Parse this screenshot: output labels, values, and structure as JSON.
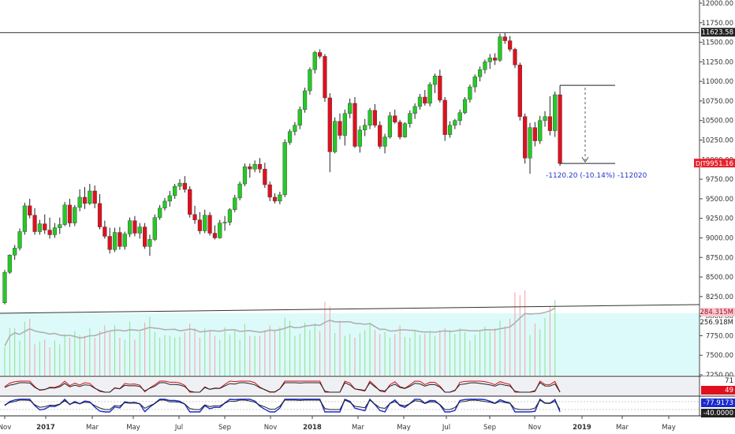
{
  "chart_data": [
    {
      "type": "candlestick",
      "symbol_tag": "DJT",
      "last_value_label": "9951.16",
      "reference_line_label": "11623.58",
      "ylim": [
        7250,
        12000
      ],
      "y_ticks": [
        "12000.00",
        "11750.00",
        "11500.00",
        "11250.00",
        "11000.00",
        "10750.00",
        "10500.00",
        "10250.00",
        "10000.00",
        "9750.00",
        "9500.00",
        "9250.00",
        "9000.00",
        "8750.00",
        "8500.00",
        "8250.00",
        "8000.00",
        "7750.00",
        "7500.00",
        "7250.00"
      ],
      "x_ticks": [
        "Nov",
        "2017",
        "Mar",
        "May",
        "Jul",
        "Sep",
        "Nov",
        "2018",
        "Mar",
        "May",
        "Jul",
        "Sep",
        "Nov",
        "2019",
        "Mar",
        "May"
      ],
      "measure_annotation": "-1120.20 (-10.14%) -112020",
      "colors": {
        "up": "#26c926",
        "down": "#e0101e",
        "reference_line": "#333333",
        "price_tag": "#e8202a",
        "volume_tag": "#f7c7ce",
        "volume_ma": "#b0b0b0",
        "volume_area": "#ddfafa",
        "annotation": "#2633c9"
      },
      "ohlc": [
        [
          8170,
          8590,
          8150,
          8560
        ],
        [
          8560,
          8790,
          8540,
          8780
        ],
        [
          8780,
          8910,
          8720,
          8870
        ],
        [
          8870,
          9120,
          8840,
          9080
        ],
        [
          9080,
          9450,
          9040,
          9410
        ],
        [
          9410,
          9500,
          9250,
          9290
        ],
        [
          9290,
          9380,
          9040,
          9080
        ],
        [
          9080,
          9230,
          9040,
          9180
        ],
        [
          9180,
          9300,
          9050,
          9100
        ],
        [
          9100,
          9260,
          8990,
          9040
        ],
        [
          9040,
          9190,
          9000,
          9130
        ],
        [
          9130,
          9260,
          9050,
          9170
        ],
        [
          9170,
          9460,
          9150,
          9420
        ],
        [
          9420,
          9500,
          9140,
          9190
        ],
        [
          9190,
          9420,
          9150,
          9390
        ],
        [
          9390,
          9620,
          9340,
          9520
        ],
        [
          9520,
          9650,
          9370,
          9440
        ],
        [
          9440,
          9690,
          9420,
          9600
        ],
        [
          9600,
          9670,
          9380,
          9440
        ],
        [
          9440,
          9560,
          9110,
          9140
        ],
        [
          9140,
          9220,
          8990,
          9020
        ],
        [
          9020,
          9130,
          8800,
          8850
        ],
        [
          8850,
          9130,
          8820,
          9070
        ],
        [
          9070,
          9140,
          8850,
          8890
        ],
        [
          8890,
          9080,
          8850,
          9050
        ],
        [
          9050,
          9260,
          9010,
          9220
        ],
        [
          9220,
          9280,
          9020,
          9060
        ],
        [
          9060,
          9190,
          8990,
          9140
        ],
        [
          9140,
          9190,
          8860,
          8890
        ],
        [
          8890,
          9040,
          8770,
          8980
        ],
        [
          8980,
          9300,
          8960,
          9260
        ],
        [
          9260,
          9420,
          9230,
          9380
        ],
        [
          9380,
          9510,
          9350,
          9470
        ],
        [
          9470,
          9600,
          9400,
          9540
        ],
        [
          9540,
          9690,
          9500,
          9660
        ],
        [
          9660,
          9750,
          9610,
          9700
        ],
        [
          9700,
          9790,
          9580,
          9620
        ],
        [
          9620,
          9660,
          9260,
          9300
        ],
        [
          9300,
          9410,
          9180,
          9230
        ],
        [
          9230,
          9330,
          9050,
          9090
        ],
        [
          9090,
          9360,
          9060,
          9290
        ],
        [
          9290,
          9330,
          9030,
          9060
        ],
        [
          9060,
          9160,
          8980,
          9000
        ],
        [
          9000,
          9230,
          8990,
          9190
        ],
        [
          9190,
          9280,
          9090,
          9200
        ],
        [
          9200,
          9380,
          9160,
          9360
        ],
        [
          9360,
          9550,
          9330,
          9510
        ],
        [
          9510,
          9720,
          9480,
          9690
        ],
        [
          9690,
          9950,
          9660,
          9910
        ],
        [
          9910,
          9950,
          9770,
          9880
        ],
        [
          9880,
          9990,
          9840,
          9940
        ],
        [
          9940,
          10020,
          9830,
          9880
        ],
        [
          9880,
          9960,
          9640,
          9680
        ],
        [
          9680,
          9720,
          9470,
          9520
        ],
        [
          9520,
          9570,
          9440,
          9470
        ],
        [
          9470,
          9590,
          9430,
          9550
        ],
        [
          9550,
          10260,
          9520,
          10220
        ],
        [
          10220,
          10390,
          10190,
          10360
        ],
        [
          10360,
          10480,
          10310,
          10440
        ],
        [
          10440,
          10680,
          10390,
          10640
        ],
        [
          10640,
          10920,
          10600,
          10880
        ],
        [
          10880,
          11180,
          10830,
          11150
        ],
        [
          11150,
          11390,
          11100,
          11370
        ],
        [
          11370,
          11410,
          11290,
          11320
        ],
        [
          11320,
          11350,
          10740,
          10790
        ],
        [
          10790,
          10850,
          9840,
          10100
        ],
        [
          10100,
          10540,
          10080,
          10490
        ],
        [
          10490,
          10590,
          10260,
          10310
        ],
        [
          10310,
          10640,
          10180,
          10590
        ],
        [
          10590,
          10780,
          10530,
          10720
        ],
        [
          10720,
          10800,
          10150,
          10170
        ],
        [
          10170,
          10430,
          10090,
          10380
        ],
        [
          10380,
          10520,
          10300,
          10440
        ],
        [
          10440,
          10660,
          10390,
          10630
        ],
        [
          10630,
          10710,
          10410,
          10440
        ],
        [
          10440,
          10490,
          10140,
          10170
        ],
        [
          10170,
          10330,
          10080,
          10290
        ],
        [
          10290,
          10610,
          10270,
          10560
        ],
        [
          10560,
          10640,
          10460,
          10480
        ],
        [
          10480,
          10510,
          10260,
          10290
        ],
        [
          10290,
          10480,
          10280,
          10460
        ],
        [
          10460,
          10630,
          10410,
          10590
        ],
        [
          10590,
          10720,
          10520,
          10680
        ],
        [
          10680,
          10840,
          10640,
          10800
        ],
        [
          10800,
          10890,
          10690,
          10720
        ],
        [
          10720,
          10990,
          10680,
          10960
        ],
        [
          10960,
          11100,
          10850,
          11070
        ],
        [
          11070,
          11150,
          10730,
          10760
        ],
        [
          10760,
          10800,
          10240,
          10320
        ],
        [
          10320,
          10490,
          10280,
          10440
        ],
        [
          10440,
          10520,
          10390,
          10500
        ],
        [
          10500,
          10640,
          10440,
          10600
        ],
        [
          10600,
          10800,
          10580,
          10770
        ],
        [
          10770,
          10960,
          10730,
          10930
        ],
        [
          10930,
          11090,
          10860,
          11060
        ],
        [
          11060,
          11190,
          11000,
          11150
        ],
        [
          11150,
          11280,
          11100,
          11250
        ],
        [
          11250,
          11350,
          11160,
          11300
        ],
        [
          11300,
          11360,
          11210,
          11270
        ],
        [
          11270,
          11610,
          11250,
          11570
        ],
        [
          11570,
          11623,
          11480,
          11520
        ],
        [
          11520,
          11580,
          11380,
          11410
        ],
        [
          11410,
          11430,
          11170,
          11210
        ],
        [
          11210,
          11240,
          10500,
          10550
        ],
        [
          10550,
          10590,
          9950,
          10020
        ],
        [
          10020,
          10470,
          9820,
          10410
        ],
        [
          10410,
          10480,
          10170,
          10240
        ],
        [
          10240,
          10560,
          10200,
          10500
        ],
        [
          10500,
          10620,
          10420,
          10550
        ],
        [
          10550,
          10810,
          10310,
          10370
        ],
        [
          10370,
          10870,
          10290,
          10830
        ],
        [
          10830,
          10950,
          9920,
          9951
        ]
      ],
      "volume_pct": [
        30,
        50,
        50,
        37,
        57,
        60,
        33,
        36,
        38,
        30,
        37,
        33,
        44,
        40,
        47,
        43,
        42,
        50,
        40,
        47,
        53,
        46,
        53,
        40,
        38,
        57,
        38,
        46,
        56,
        62,
        46,
        40,
        43,
        42,
        40,
        41,
        46,
        55,
        50,
        40,
        50,
        48,
        42,
        38,
        51,
        43,
        48,
        38,
        55,
        42,
        42,
        42,
        48,
        53,
        47,
        51,
        61,
        58,
        42,
        44,
        56,
        48,
        55,
        47,
        78,
        73,
        45,
        58,
        42,
        44,
        40,
        45,
        48,
        55,
        48,
        44,
        46,
        40,
        44,
        53,
        41,
        40,
        47,
        43,
        44,
        46,
        42,
        48,
        50,
        48,
        44,
        50,
        46,
        37,
        43,
        48,
        52,
        47,
        50,
        58,
        52,
        60,
        88,
        85,
        90,
        43,
        55,
        49,
        61,
        73,
        80
      ],
      "volume_tag_1": "284.315M",
      "volume_tag_2": "256.918M",
      "rsi_tag_1": "71",
      "rsi_tag_2": "49",
      "stoch_tag_1": "-77.9173",
      "stoch_tag_2": "-40.0000"
    }
  ]
}
